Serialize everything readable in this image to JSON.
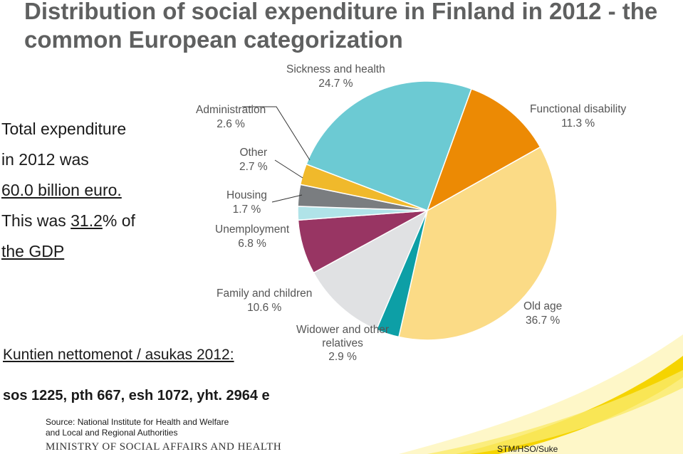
{
  "colors": {
    "title": "#5f6060",
    "label": "#555555",
    "wave": "#f5d400"
  },
  "total_text": {
    "line1": "Total expenditure",
    "line2": "in 2012 was",
    "line3": "60.0 billion euro.",
    "line4_prefix": "This was ",
    "line4_link": "31.2",
    "line4_suffix": "% of",
    "line5": "the GDP"
  },
  "kuntien": "Kuntien nettomenot / asukas 2012:",
  "sos_line": "sos 1225, pth 667, esh 1072,  yht. 2964  e",
  "source": {
    "line1": "Source: National Institute for Health and Welfare",
    "line2": "and Local and Regional Authorities"
  },
  "ministry": "MINISTRY OF SOCIAL AFFAIRS AND HEALTH",
  "stm": "STM/HSO/Suke",
  "chart_data": {
    "type": "pie",
    "title": "Distribution of social expenditure in Finland in 2012 - the common European categorization",
    "slices": [
      {
        "name": "Sickness and health",
        "value": 24.7,
        "label": "24.7 %",
        "color": "#6ccad3"
      },
      {
        "name": "Functional disability",
        "value": 11.3,
        "label": "11.3 %",
        "color": "#ec8a04"
      },
      {
        "name": "Old age",
        "value": 36.7,
        "label": "36.7 %",
        "color": "#fbdb86"
      },
      {
        "name": "Widower and other relatives",
        "value": 2.9,
        "label": "2.9 %",
        "color": "#0d9fa6"
      },
      {
        "name": "Family and children",
        "value": 10.6,
        "label": "10.6 %",
        "color": "#e0e1e3"
      },
      {
        "name": "Unemployment",
        "value": 6.8,
        "label": "6.8 %",
        "color": "#983563"
      },
      {
        "name": "Housing",
        "value": 1.7,
        "label": "1.7 %",
        "color": "#b0e3e8"
      },
      {
        "name": "Other",
        "value": 2.7,
        "label": "2.7 %",
        "color": "#7a7d80"
      },
      {
        "name": "Administration",
        "value": 2.6,
        "label": "2.6 %",
        "color": "#f0b92b"
      }
    ]
  }
}
